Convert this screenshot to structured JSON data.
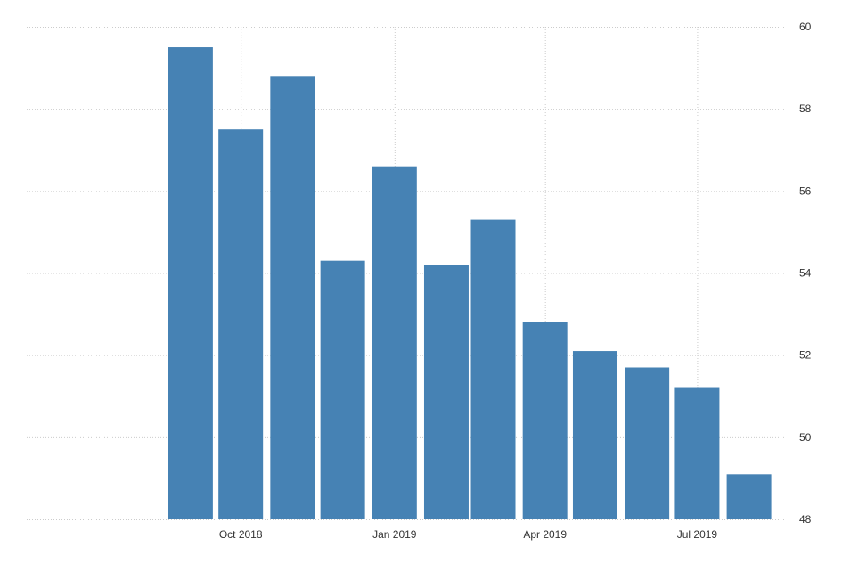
{
  "chart_data": {
    "type": "bar",
    "title": "",
    "xlabel": "",
    "ylabel": "",
    "x": [
      "2018-09-01",
      "2018-10-01",
      "2018-11-01",
      "2018-12-01",
      "2019-01-01",
      "2019-02-01",
      "2019-03-01",
      "2019-04-01",
      "2019-05-01",
      "2019-06-01",
      "2019-07-01",
      "2019-08-01"
    ],
    "values": [
      59.5,
      57.5,
      58.8,
      54.3,
      56.6,
      54.2,
      55.3,
      52.8,
      52.1,
      51.7,
      51.2,
      49.1
    ],
    "xlim": [
      "2018-05-26",
      "2018-08-22"
    ],
    "xlim_end": "2019-08-22",
    "ylim": [
      48,
      60
    ],
    "y_ticks": [
      "48",
      "50",
      "52",
      "54",
      "56",
      "58",
      "60"
    ],
    "y_axis_position": "right",
    "x_ticks": [
      {
        "date": "2018-10-01",
        "label": "Oct 2018"
      },
      {
        "date": "2019-01-01",
        "label": "Jan 2019"
      },
      {
        "date": "2019-04-01",
        "label": "Apr 2019"
      },
      {
        "date": "2019-07-01",
        "label": "Jul 2019"
      }
    ],
    "grid": true,
    "bar_color": "#4682b4"
  }
}
